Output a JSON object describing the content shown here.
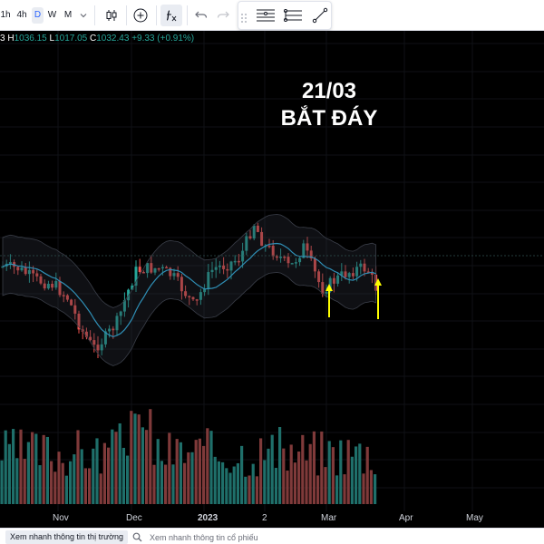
{
  "toolbar": {
    "timeframes": [
      {
        "label": "1h",
        "active": false
      },
      {
        "label": "4h",
        "active": false
      },
      {
        "label": "D",
        "active": true
      },
      {
        "label": "W",
        "active": false
      },
      {
        "label": "M",
        "active": false
      }
    ]
  },
  "legend": {
    "open_label": "3",
    "high_label": "H",
    "high": "1036.15",
    "low_label": "L",
    "low": "1017.05",
    "close_label": "C",
    "close": "1032.43",
    "change": "+9.33 (+0.91%)"
  },
  "annotation": {
    "line1": "21/03",
    "line2": "BẮT ĐÁY"
  },
  "x_axis": [
    "Nov",
    "Dec",
    "2023",
    "2",
    "Mar",
    "Apr",
    "May"
  ],
  "bottom_bar": {
    "market_button": "Xem nhanh thông tin thị trường",
    "stock_search": "Xem nhanh thông tin cổ phiếu"
  },
  "colors": {
    "up": "#26a69a",
    "down": "#ef5350",
    "arrow": "#ffff00",
    "band": "#2a2e39",
    "ma": "#2f8fb6"
  }
}
